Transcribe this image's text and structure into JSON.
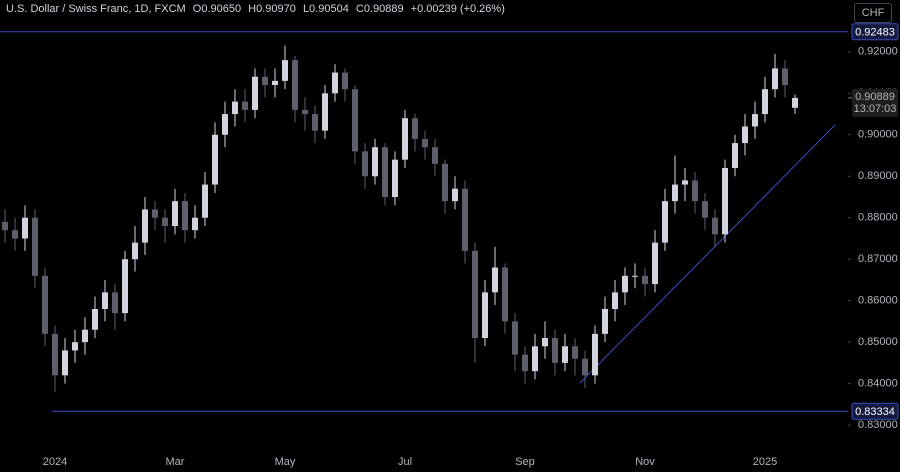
{
  "header": {
    "symbol": "U.S. Dollar / Swiss Franc, 1D, FXCM",
    "open": "O0.90650",
    "high": "H0.90970",
    "low": "L0.90504",
    "close": "C0.90889",
    "change": "+0.00239 (+0.26%)",
    "currency": "CHF"
  },
  "chart_data": {
    "type": "candlestick",
    "categories": [
      null,
      null,
      null,
      null,
      null,
      "2024",
      null,
      null,
      null,
      null,
      null,
      null,
      null,
      null,
      null,
      null,
      null,
      "Mar",
      null,
      null,
      null,
      null,
      null,
      null,
      null,
      null,
      null,
      null,
      "May",
      null,
      null,
      null,
      null,
      null,
      null,
      null,
      null,
      null,
      null,
      null,
      "Jul",
      null,
      null,
      null,
      null,
      null,
      null,
      null,
      null,
      null,
      null,
      null,
      "Sep",
      null,
      null,
      null,
      null,
      null,
      null,
      null,
      null,
      null,
      null,
      null,
      "Nov",
      null,
      null,
      null,
      null,
      null,
      null,
      null,
      null,
      null,
      null,
      null,
      "2025",
      null,
      null,
      null
    ],
    "open": [
      0.879,
      0.877,
      0.875,
      0.88,
      0.866,
      0.852,
      0.842,
      0.848,
      0.85,
      0.853,
      0.858,
      0.862,
      0.857,
      0.87,
      0.874,
      0.882,
      0.88,
      0.878,
      0.884,
      0.877,
      0.88,
      0.888,
      0.9,
      0.905,
      0.908,
      0.906,
      0.914,
      0.912,
      0.913,
      0.918,
      0.906,
      0.905,
      0.901,
      0.91,
      0.915,
      0.911,
      0.896,
      0.89,
      0.897,
      0.885,
      0.894,
      0.904,
      0.899,
      0.897,
      0.893,
      0.884,
      0.887,
      0.872,
      0.851,
      0.862,
      0.868,
      0.855,
      0.847,
      0.843,
      0.849,
      0.851,
      0.845,
      0.849,
      0.846,
      0.842,
      0.852,
      0.858,
      0.862,
      0.866,
      0.866,
      0.864,
      0.874,
      0.884,
      0.888,
      0.889,
      0.884,
      0.88,
      0.876,
      0.892,
      0.898,
      0.902,
      0.905,
      0.911,
      0.916,
      0.9065
    ],
    "high": [
      0.882,
      0.88,
      0.883,
      0.882,
      0.868,
      0.854,
      0.851,
      0.853,
      0.856,
      0.861,
      0.865,
      0.864,
      0.872,
      0.878,
      0.885,
      0.884,
      0.882,
      0.887,
      0.886,
      0.883,
      0.891,
      0.903,
      0.908,
      0.911,
      0.911,
      0.916,
      0.916,
      0.916,
      0.9215,
      0.919,
      0.909,
      0.907,
      0.912,
      0.917,
      0.916,
      0.912,
      0.898,
      0.899,
      0.898,
      0.896,
      0.906,
      0.905,
      0.901,
      0.899,
      0.894,
      0.89,
      0.889,
      0.874,
      0.865,
      0.873,
      0.869,
      0.857,
      0.849,
      0.852,
      0.855,
      0.853,
      0.852,
      0.851,
      0.848,
      0.854,
      0.861,
      0.865,
      0.868,
      0.869,
      0.868,
      0.877,
      0.887,
      0.895,
      0.892,
      0.891,
      0.886,
      0.882,
      0.894,
      0.9,
      0.905,
      0.908,
      0.914,
      0.9195,
      0.918,
      0.9097
    ],
    "low": [
      0.874,
      0.872,
      0.872,
      0.863,
      0.849,
      0.838,
      0.84,
      0.845,
      0.847,
      0.851,
      0.855,
      0.853,
      0.855,
      0.867,
      0.871,
      0.877,
      0.874,
      0.876,
      0.874,
      0.875,
      0.878,
      0.886,
      0.897,
      0.902,
      0.903,
      0.904,
      0.909,
      0.909,
      0.911,
      0.903,
      0.901,
      0.898,
      0.899,
      0.908,
      0.908,
      0.893,
      0.887,
      0.888,
      0.883,
      0.883,
      0.892,
      0.896,
      0.894,
      0.89,
      0.881,
      0.882,
      0.869,
      0.845,
      0.849,
      0.859,
      0.852,
      0.843,
      0.84,
      0.841,
      0.846,
      0.842,
      0.843,
      0.842,
      0.839,
      0.84,
      0.85,
      0.855,
      0.859,
      0.863,
      0.861,
      0.862,
      0.872,
      0.881,
      0.884,
      0.881,
      0.877,
      0.873,
      0.874,
      0.89,
      0.895,
      0.899,
      0.903,
      0.909,
      0.909,
      0.90504
    ],
    "close": [
      0.877,
      0.875,
      0.88,
      0.866,
      0.852,
      0.842,
      0.848,
      0.85,
      0.853,
      0.858,
      0.862,
      0.857,
      0.87,
      0.874,
      0.882,
      0.88,
      0.878,
      0.884,
      0.877,
      0.88,
      0.888,
      0.9,
      0.905,
      0.908,
      0.906,
      0.914,
      0.912,
      0.913,
      0.918,
      0.906,
      0.905,
      0.901,
      0.91,
      0.915,
      0.911,
      0.896,
      0.89,
      0.897,
      0.885,
      0.894,
      0.904,
      0.899,
      0.897,
      0.893,
      0.884,
      0.887,
      0.872,
      0.851,
      0.862,
      0.868,
      0.855,
      0.847,
      0.843,
      0.849,
      0.851,
      0.845,
      0.849,
      0.846,
      0.842,
      0.852,
      0.858,
      0.862,
      0.866,
      0.866,
      0.864,
      0.874,
      0.884,
      0.888,
      0.889,
      0.884,
      0.88,
      0.876,
      0.892,
      0.898,
      0.902,
      0.905,
      0.911,
      0.916,
      0.912,
      0.90889
    ],
    "up_color": "#d1d4dc",
    "down_color": "#5d606b",
    "ylim": [
      0.8252,
      0.9325
    ],
    "yticks": [
      {
        "value": 0.83,
        "label": "0.83000"
      },
      {
        "value": 0.84,
        "label": "0.84000"
      },
      {
        "value": 0.85,
        "label": "0.85000"
      },
      {
        "value": 0.86,
        "label": "0.86000"
      },
      {
        "value": 0.87,
        "label": "0.87000"
      },
      {
        "value": 0.88,
        "label": "0.88000"
      },
      {
        "value": 0.89,
        "label": "0.89000"
      },
      {
        "value": 0.9,
        "label": "0.90000"
      },
      {
        "value": 0.91,
        "label": "0.91000"
      },
      {
        "value": 0.92,
        "label": "0.92000"
      }
    ],
    "levels": [
      0.92483,
      0.83334
    ],
    "level_color": "#3b4cc0",
    "last_price": 0.90889,
    "countdown": "13:07:03"
  }
}
